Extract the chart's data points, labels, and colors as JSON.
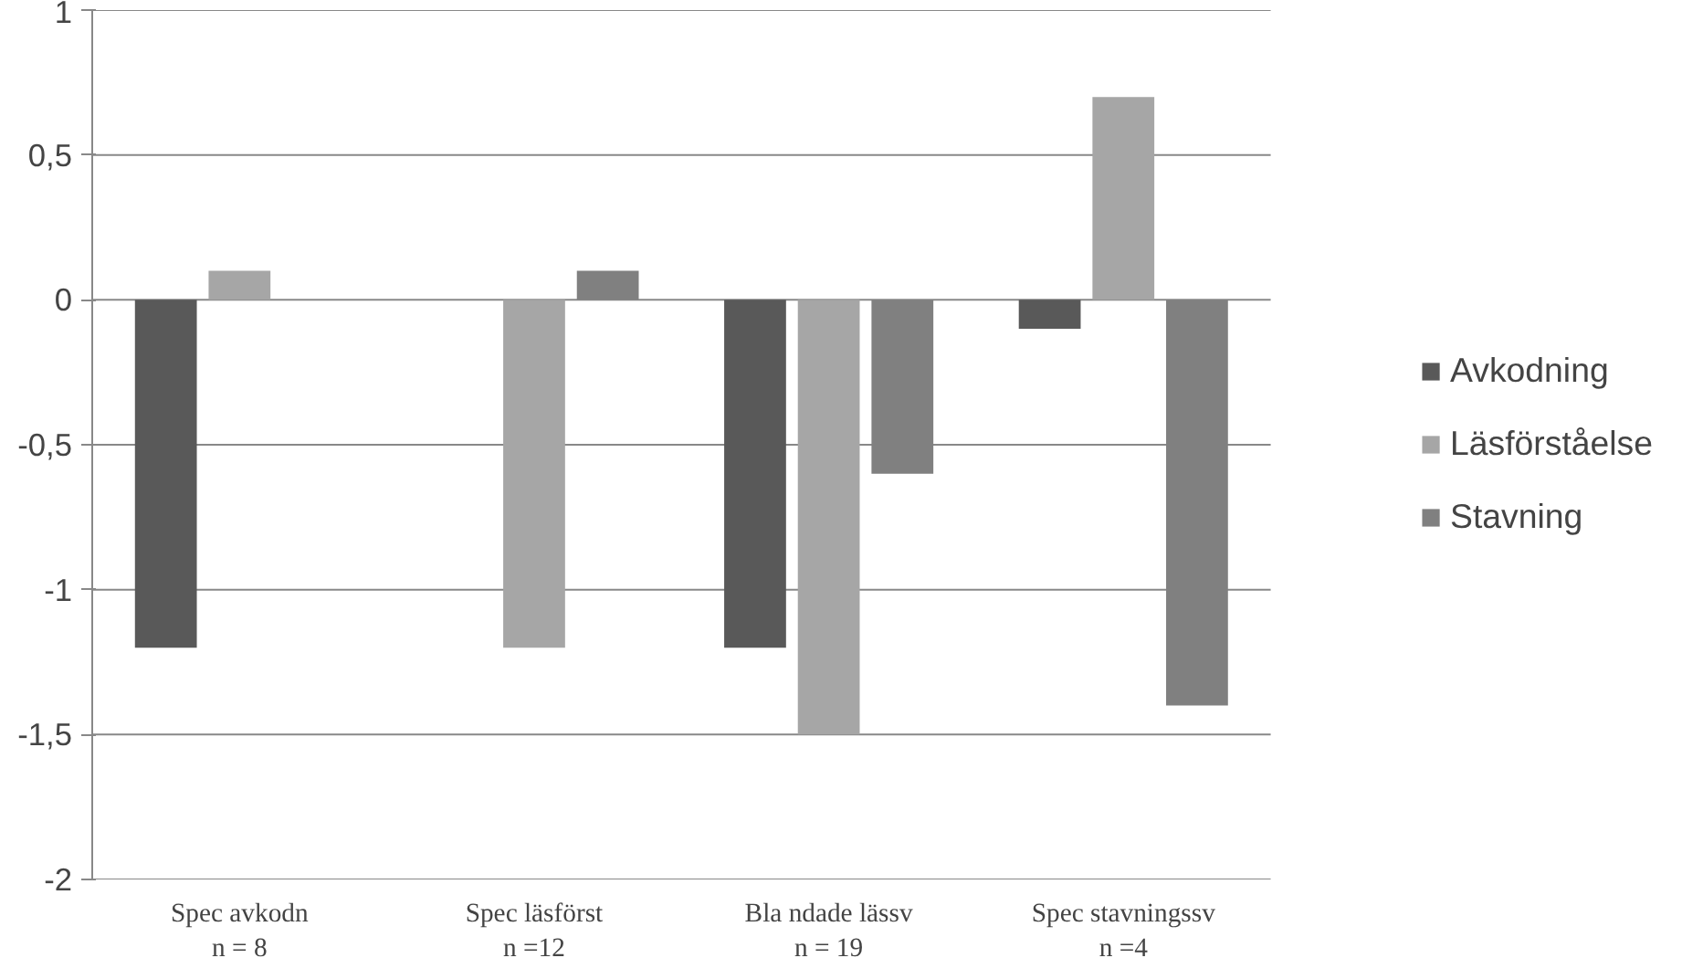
{
  "chart_data": {
    "type": "bar",
    "categories": [
      "Spec avkodn\nn = 8",
      "Spec läsförst\nn =12",
      "Bla ndade lässv\nn = 19",
      "Spec stavningssv\nn =4"
    ],
    "series": [
      {
        "name": "Avkodning",
        "color": "#595959",
        "values": [
          -1.2,
          0,
          -1.2,
          -0.1
        ]
      },
      {
        "name": "Läsförståelse",
        "color": "#a6a6a6",
        "values": [
          0.1,
          -1.2,
          -1.5,
          0.7
        ]
      },
      {
        "name": "Stavning",
        "color": "#808080",
        "values": [
          0,
          0.1,
          -0.6,
          -1.4
        ]
      }
    ],
    "ylim": [
      -2,
      1
    ],
    "yticks": [
      1,
      {
        "value": 0.5,
        "label": "0,5"
      },
      0,
      {
        "value": -0.5,
        "label": "-0,5"
      },
      -1,
      {
        "value": -1.5,
        "label": "-1,5"
      },
      -2
    ],
    "grid": "y",
    "legend": "right"
  }
}
